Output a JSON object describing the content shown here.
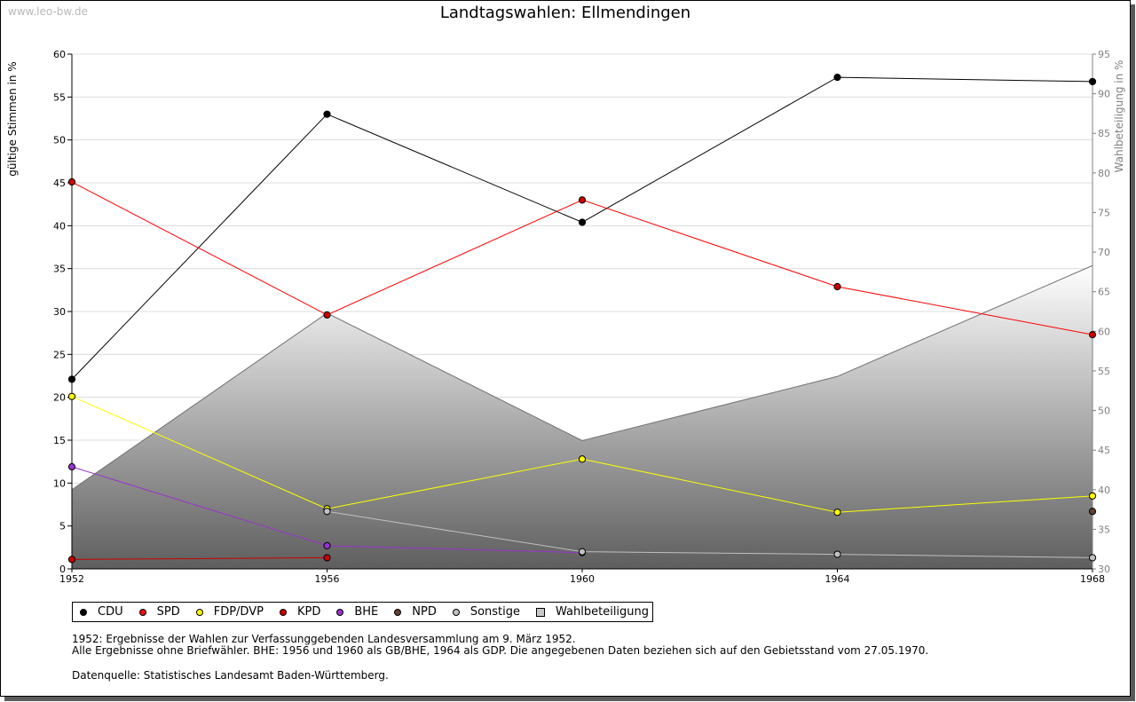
{
  "watermark": "www.leo-bw.de",
  "chart_data": {
    "type": "line",
    "title": "Landtagswahlen: Ellmendingen",
    "ylabel": "gültige Stimmen in %",
    "y2label": "Wahlbeteiligung in %",
    "x": [
      1952,
      1956,
      1960,
      1964,
      1968
    ],
    "ylim": [
      0,
      60
    ],
    "y2lim": [
      30,
      95
    ],
    "yticks": [
      0,
      5,
      10,
      15,
      20,
      25,
      30,
      35,
      40,
      45,
      50,
      55,
      60
    ],
    "y2ticks": [
      30,
      35,
      40,
      45,
      50,
      55,
      60,
      65,
      70,
      75,
      80,
      85,
      90,
      95
    ],
    "grid": true,
    "series": [
      {
        "name": "CDU",
        "color": "#000000",
        "marker": "#000000",
        "values": [
          22.1,
          53.0,
          40.4,
          57.3,
          56.8
        ]
      },
      {
        "name": "SPD",
        "color": "#ff0000",
        "marker": "#cc0000",
        "values": [
          45.1,
          29.6,
          43.0,
          32.9,
          27.3
        ]
      },
      {
        "name": "FDP/DVP",
        "color": "#ffff00",
        "marker": "#ffff00",
        "values": [
          20.1,
          7.0,
          12.8,
          6.6,
          8.5
        ]
      },
      {
        "name": "KPD",
        "color": "#cc0000",
        "marker": "#cc0000",
        "values": [
          1.1,
          1.3,
          null,
          null,
          null
        ]
      },
      {
        "name": "BHE",
        "color": "#9933cc",
        "marker": "#9933cc",
        "values": [
          11.9,
          2.7,
          1.9,
          null,
          null
        ]
      },
      {
        "name": "NPD",
        "color": "#604030",
        "marker": "#604030",
        "values": [
          null,
          null,
          null,
          null,
          6.7
        ]
      },
      {
        "name": "Sonstige",
        "color": "#c0c0c0",
        "marker": "#c0c0c0",
        "values": [
          null,
          6.7,
          2.0,
          1.7,
          1.3
        ]
      }
    ],
    "turnout": {
      "name": "Wahlbeteiligung",
      "axis": "right",
      "values": [
        40.0,
        62.3,
        46.2,
        54.3,
        68.3
      ]
    }
  },
  "legend": {
    "items": [
      {
        "label": "CDU",
        "color": "#000000"
      },
      {
        "label": "SPD",
        "color": "#ee1111"
      },
      {
        "label": "FDP/DVP",
        "color": "#ffff00"
      },
      {
        "label": "KPD",
        "color": "#cc0000"
      },
      {
        "label": "BHE",
        "color": "#9933cc"
      },
      {
        "label": "NPD",
        "color": "#604030"
      },
      {
        "label": "Sonstige",
        "color": "#c0c0c0"
      },
      {
        "label": "Wahlbeteiligung",
        "color": "#c8c8c8"
      }
    ]
  },
  "notes": {
    "line1": "1952: Ergebnisse der Wahlen zur Verfassunggebenden Landesversammlung am 9. März 1952.",
    "line2": "Alle Ergebnisse ohne Briefwähler. BHE: 1956 und 1960 als GB/BHE, 1964 als GDP. Die angegebenen Daten beziehen sich auf den Gebietsstand vom 27.05.1970.",
    "source": "Datenquelle: Statistisches Landesamt Baden-Württemberg."
  }
}
